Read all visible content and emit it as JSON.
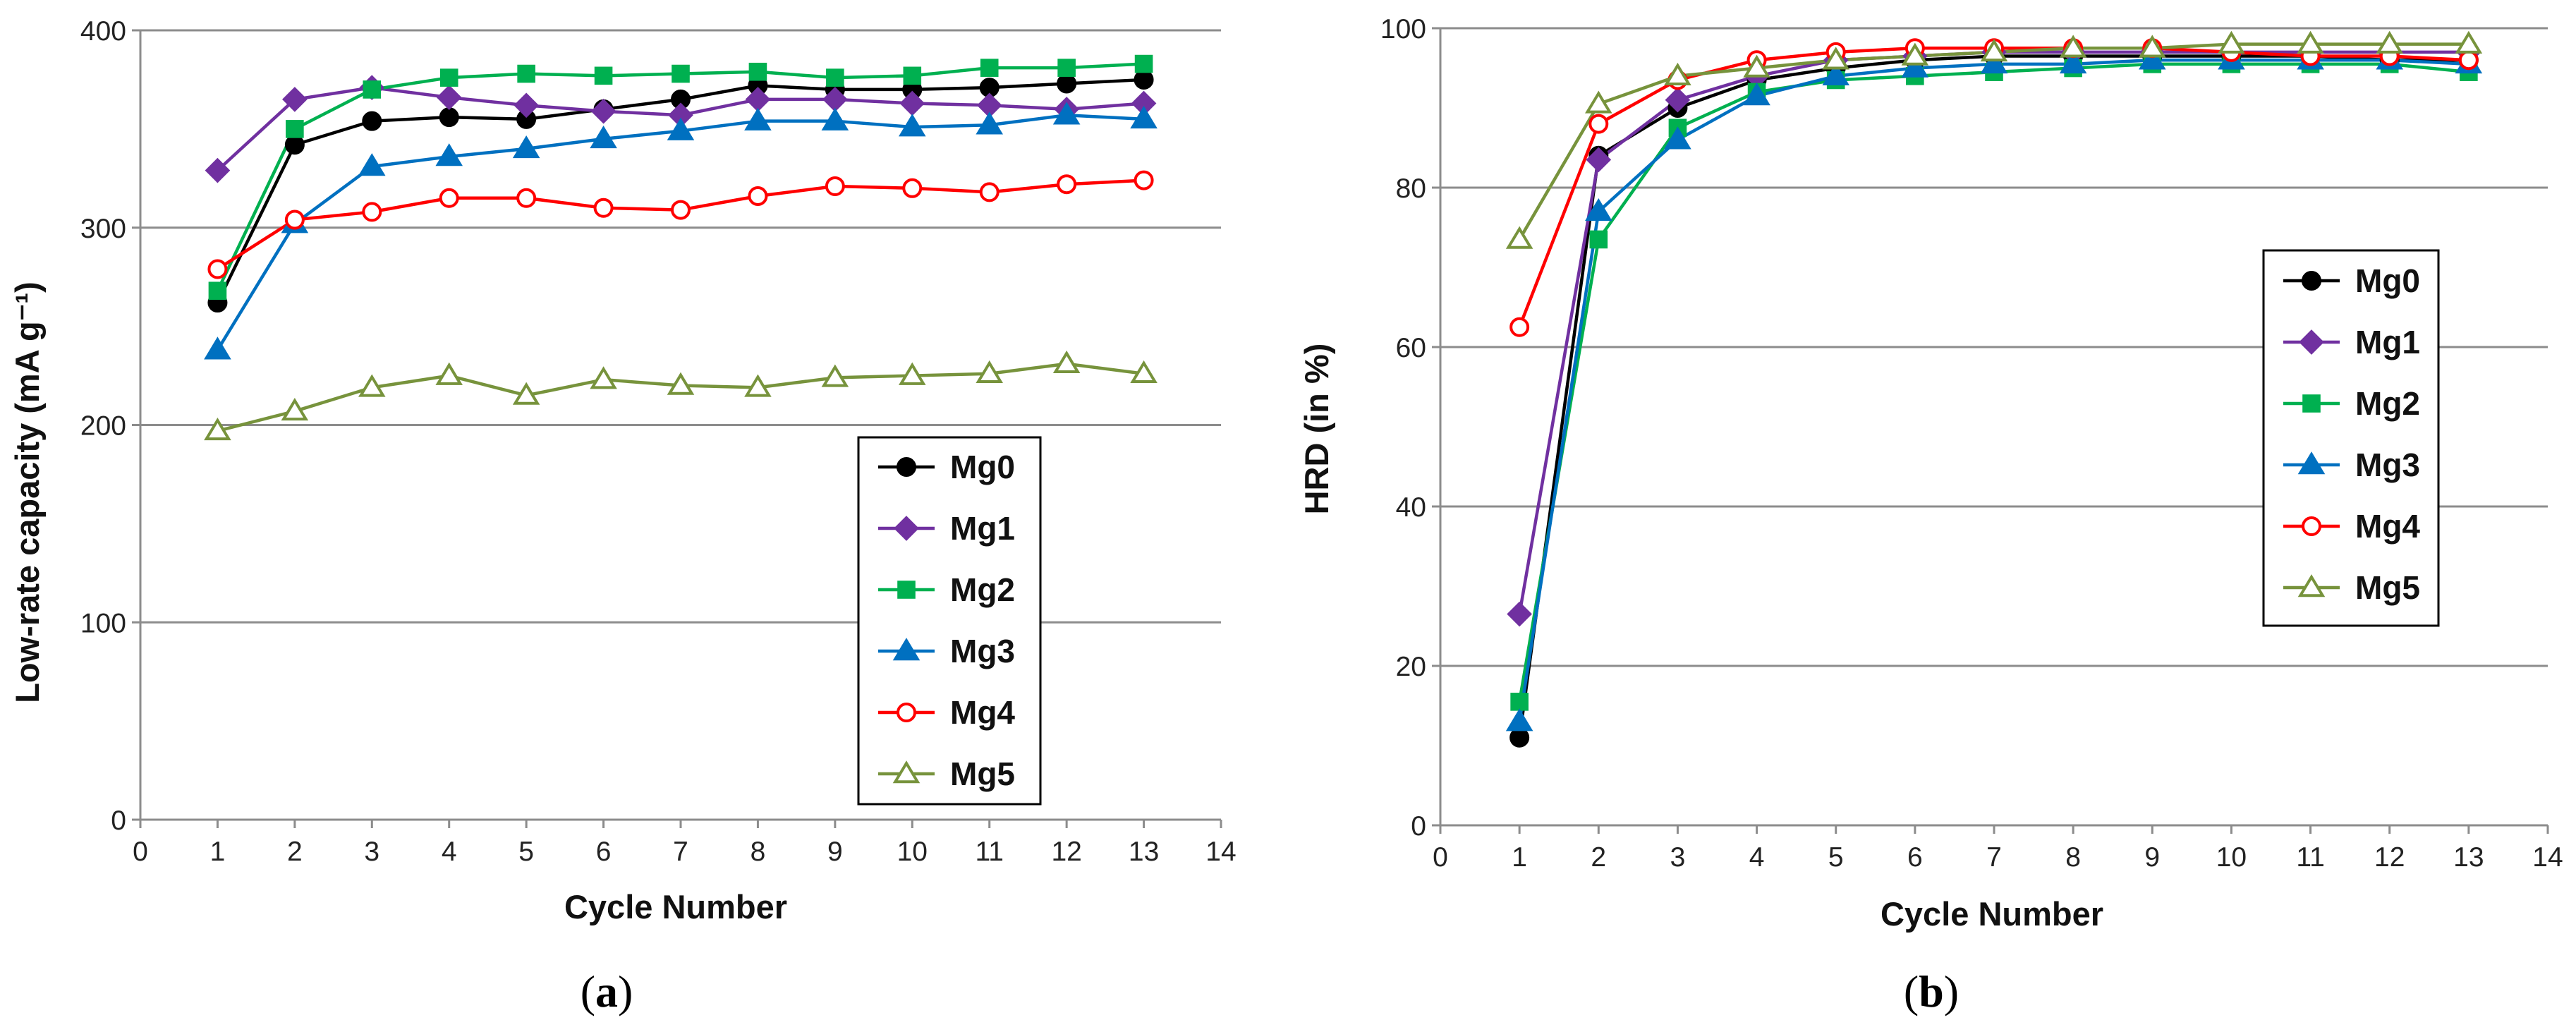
{
  "figure": {
    "panels": [
      {
        "label_open": "(",
        "label_letter": "a",
        "label_close": ")"
      },
      {
        "label_open": "(",
        "label_letter": "b",
        "label_close": ")"
      }
    ]
  },
  "chart_data": [
    {
      "type": "line",
      "title": "",
      "xlabel": "Cycle Number",
      "ylabel": "Low-rate capacity (mA g⁻¹)",
      "xlim": [
        0,
        14
      ],
      "ylim": [
        0,
        400
      ],
      "xticks": [
        0,
        1,
        2,
        3,
        4,
        5,
        6,
        7,
        8,
        9,
        10,
        11,
        12,
        13,
        14
      ],
      "yticks": [
        0,
        100,
        200,
        300,
        400
      ],
      "grid": "horizontal",
      "legend_position": "lower-right",
      "x": [
        1,
        2,
        3,
        4,
        5,
        6,
        7,
        8,
        9,
        10,
        11,
        12,
        13
      ],
      "series": [
        {
          "name": "Mg0",
          "color": "#000000",
          "marker": "circle",
          "filled": true,
          "values": [
            262,
            342,
            354,
            356,
            355,
            360,
            365,
            372,
            370,
            370,
            371,
            373,
            375
          ]
        },
        {
          "name": "Mg1",
          "color": "#7030A0",
          "marker": "diamond",
          "filled": true,
          "values": [
            329,
            365,
            371,
            366,
            362,
            359,
            357,
            365,
            365,
            363,
            362,
            360,
            363
          ]
        },
        {
          "name": "Mg2",
          "color": "#00B050",
          "marker": "square",
          "filled": true,
          "values": [
            268,
            350,
            370,
            376,
            378,
            377,
            378,
            379,
            376,
            377,
            381,
            381,
            383
          ]
        },
        {
          "name": "Mg3",
          "color": "#0070C0",
          "marker": "triangle",
          "filled": true,
          "values": [
            238,
            302,
            331,
            336,
            340,
            345,
            349,
            354,
            354,
            351,
            352,
            357,
            355
          ]
        },
        {
          "name": "Mg4",
          "color": "#FF0000",
          "marker": "circle",
          "filled": false,
          "values": [
            279,
            304,
            308,
            315,
            315,
            310,
            309,
            316,
            321,
            320,
            318,
            322,
            324
          ]
        },
        {
          "name": "Mg5",
          "color": "#77933C",
          "marker": "triangle",
          "filled": false,
          "values": [
            197,
            207,
            219,
            225,
            215,
            223,
            220,
            219,
            224,
            225,
            226,
            231,
            226
          ]
        }
      ]
    },
    {
      "type": "line",
      "title": "",
      "xlabel": "Cycle Number",
      "ylabel": "HRD (in %)",
      "xlim": [
        0,
        14
      ],
      "ylim": [
        0,
        100
      ],
      "xticks": [
        0,
        1,
        2,
        3,
        4,
        5,
        6,
        7,
        8,
        9,
        10,
        11,
        12,
        13,
        14
      ],
      "yticks": [
        0,
        20,
        40,
        60,
        80,
        100
      ],
      "grid": "horizontal",
      "legend_position": "right",
      "x": [
        1,
        2,
        3,
        4,
        5,
        6,
        7,
        8,
        9,
        10,
        11,
        12,
        13
      ],
      "series": [
        {
          "name": "Mg0",
          "color": "#000000",
          "marker": "circle",
          "filled": true,
          "values": [
            11,
            84,
            90,
            93.5,
            95,
            96,
            96.5,
            96.5,
            96.5,
            96.5,
            96.5,
            96,
            96
          ]
        },
        {
          "name": "Mg1",
          "color": "#7030A0",
          "marker": "diamond",
          "filled": true,
          "values": [
            26.5,
            83.5,
            91,
            94,
            96,
            96.5,
            97,
            97,
            97,
            97,
            97,
            97,
            97
          ]
        },
        {
          "name": "Mg2",
          "color": "#00B050",
          "marker": "square",
          "filled": true,
          "values": [
            15.5,
            73.5,
            87.5,
            92,
            93.5,
            94,
            94.5,
            95,
            95.5,
            95.5,
            95.5,
            95.5,
            94.5
          ]
        },
        {
          "name": "Mg3",
          "color": "#0070C0",
          "marker": "triangle",
          "filled": true,
          "values": [
            13,
            77,
            86,
            91.5,
            94,
            95,
            95.5,
            95.5,
            96,
            96,
            96,
            96,
            95.5
          ]
        },
        {
          "name": "Mg4",
          "color": "#FF0000",
          "marker": "circle",
          "filled": false,
          "values": [
            62.5,
            88,
            93.5,
            96,
            97,
            97.5,
            97.5,
            97.5,
            97.5,
            97,
            96.5,
            96.5,
            96
          ]
        },
        {
          "name": "Mg5",
          "color": "#77933C",
          "marker": "triangle",
          "filled": false,
          "values": [
            73.5,
            90.5,
            94,
            95,
            96,
            96.5,
            97,
            97.5,
            97.5,
            98,
            98,
            98,
            98
          ]
        }
      ]
    }
  ]
}
